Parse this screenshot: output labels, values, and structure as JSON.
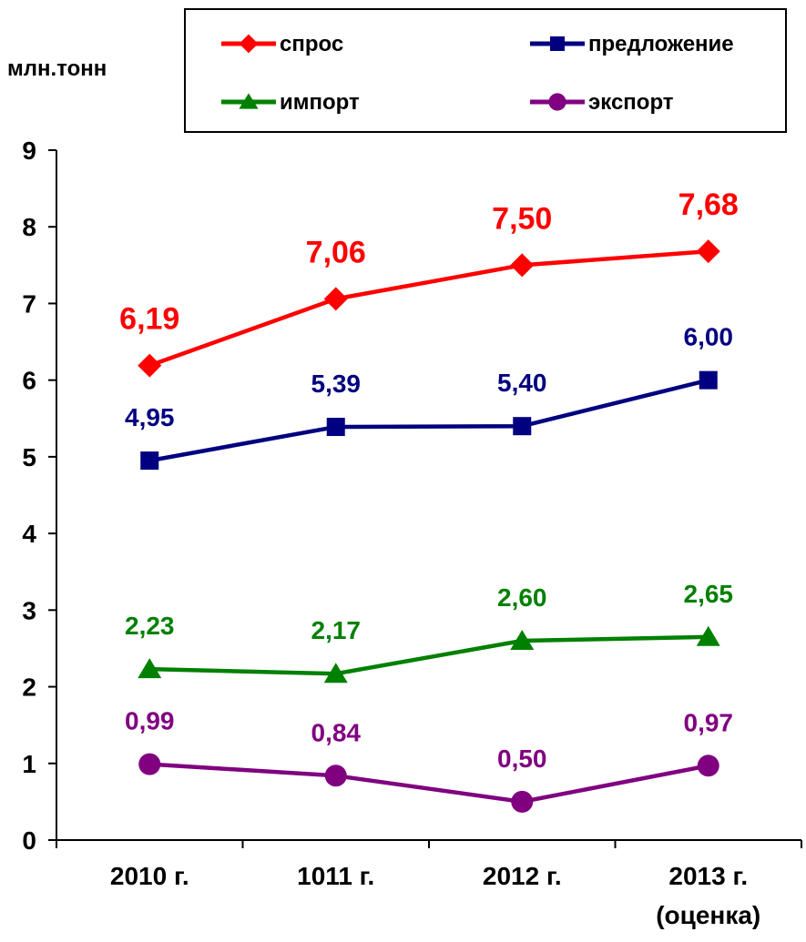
{
  "chart_data": {
    "type": "line",
    "ylabel": "млн.тонн",
    "ylim": [
      0,
      9
    ],
    "yticks": [
      "0",
      "1",
      "2",
      "3",
      "4",
      "5",
      "6",
      "7",
      "8",
      "9"
    ],
    "categories": [
      "2010 г.",
      "1011 г.",
      "2012 г.",
      "2013 г."
    ],
    "category_sublabels": [
      "",
      "",
      "",
      "(оценка)"
    ],
    "grid": false,
    "legend_position": "top",
    "series": [
      {
        "name": "спрос",
        "marker": "diamond",
        "color": "#FF0000",
        "values": [
          6.19,
          7.06,
          7.5,
          7.68
        ],
        "labels": [
          "6,19",
          "7,06",
          "7,50",
          "7,68"
        ]
      },
      {
        "name": "предложение",
        "marker": "square",
        "color": "#000080",
        "values": [
          4.95,
          5.39,
          5.4,
          6.0
        ],
        "labels": [
          "4,95",
          "5,39",
          "5,40",
          "6,00"
        ]
      },
      {
        "name": "импорт",
        "marker": "triangle",
        "color": "#008000",
        "values": [
          2.23,
          2.17,
          2.6,
          2.65
        ],
        "labels": [
          "2,23",
          "2,17",
          "2,60",
          "2,65"
        ]
      },
      {
        "name": "экспорт",
        "marker": "circle",
        "color": "#800080",
        "values": [
          0.99,
          0.84,
          0.5,
          0.97
        ],
        "labels": [
          "0,99",
          "0,84",
          "0,50",
          "0,97"
        ]
      }
    ]
  }
}
